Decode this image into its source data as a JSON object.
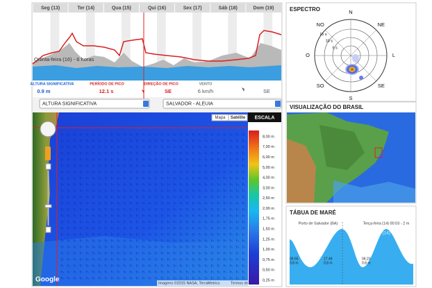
{
  "forecast": {
    "days": [
      "Seg (13)",
      "Ter (14)",
      "Qua (15)",
      "Qui (16)",
      "Sex (17)",
      "Sáb (18)",
      "Dom (19)"
    ],
    "cursor_label": "Quinta-feira (16) - 6 horas",
    "labels": [
      "ALTURA SIGNIFICATIVA",
      "PERÍODO DE PICO",
      "DIREÇÃO DE PICO",
      "VENTO"
    ],
    "values": [
      "0.9 m",
      "12.1 s",
      "SE",
      "6 km/h",
      "SE"
    ]
  },
  "controls": {
    "variable": "ALTURA SIGNIFICATIVA",
    "location": "SALVADOR - ALEUIA"
  },
  "map": {
    "buttons": [
      "Mapa",
      "Satélite"
    ],
    "scale_title": "ESCALA",
    "scale_labels": [
      "8,00 m",
      "7,00 m",
      "6,00 m",
      "5,00 m",
      "4,00 m",
      "3,00 m",
      "2,50 m",
      "2,00 m",
      "1,75 m",
      "1,50 m",
      "1,25 m",
      "1,00 m",
      "0,75 m",
      "0,50 m",
      "0,25 m"
    ],
    "logo": "Google",
    "attribution": "Imagens ©2015 NASA, TerraMetrics",
    "terms": "Termos de Uso"
  },
  "spectrum": {
    "title": "ESPECTRO",
    "directions": [
      "N",
      "NE",
      "L",
      "SE",
      "S",
      "SO",
      "O",
      "NO"
    ],
    "periods": [
      "15 s",
      "10 s",
      "5 s"
    ]
  },
  "brasil": {
    "title": "VISUALIZAÇÃO DO BRASIL"
  },
  "tide": {
    "title": "TÁBUA DE MARÉ",
    "port": "Porto de Salvador (BA)",
    "cursor": "Terça-feira (14) 00:03 - 2 m",
    "days": [
      "Segunda-feira (13)",
      "Terça-feira (14)"
    ],
    "events": [
      {
        "time": "05:55",
        "height": "0.8 m"
      },
      {
        "time": "17:49",
        "height": "0.8 m"
      },
      {
        "time": "06:23",
        "height": "0.8 m"
      }
    ]
  }
}
